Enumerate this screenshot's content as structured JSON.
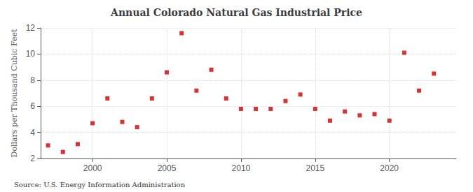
{
  "chart_data": {
    "type": "scatter",
    "title": "Annual Colorado Natural Gas Industrial Price",
    "ylabel": "Dollars per Thousand Cubic Feet",
    "source": "Source: U.S. Energy Information Administration",
    "x": [
      1997,
      1998,
      1999,
      2000,
      2001,
      2002,
      2003,
      2004,
      2005,
      2006,
      2007,
      2008,
      2009,
      2010,
      2011,
      2012,
      2013,
      2014,
      2015,
      2016,
      2017,
      2018,
      2019,
      2020,
      2021,
      2022,
      2023
    ],
    "values": [
      3.0,
      2.5,
      3.1,
      4.7,
      6.6,
      4.8,
      4.4,
      6.6,
      8.6,
      11.6,
      7.2,
      8.8,
      6.6,
      5.8,
      5.8,
      5.8,
      6.4,
      6.9,
      5.8,
      4.9,
      5.6,
      5.3,
      5.4,
      4.9,
      10.1,
      7.2,
      8.5
    ],
    "color": "#cc0000",
    "marker": "square",
    "xlim": [
      1996.5,
      2024.5
    ],
    "xticks": [
      2000,
      2005,
      2010,
      2015,
      2020
    ],
    "ylim": [
      2,
      12
    ],
    "yticks": [
      2,
      4,
      6,
      8,
      10,
      12
    ],
    "grid": true
  }
}
